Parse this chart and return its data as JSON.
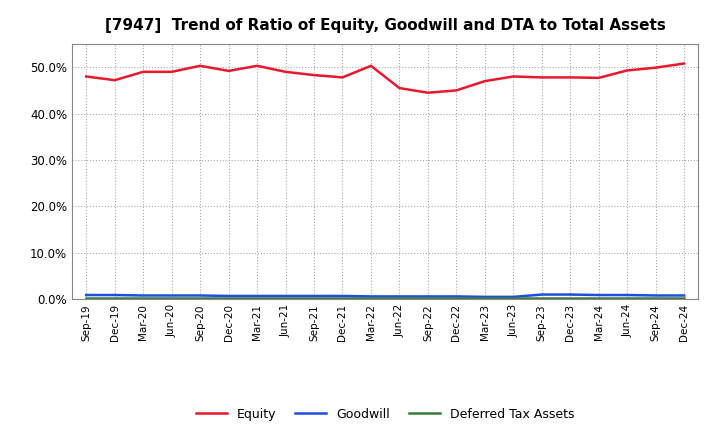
{
  "title": "[7947]  Trend of Ratio of Equity, Goodwill and DTA to Total Assets",
  "x_labels": [
    "Sep-19",
    "Dec-19",
    "Mar-20",
    "Jun-20",
    "Sep-20",
    "Dec-20",
    "Mar-21",
    "Jun-21",
    "Sep-21",
    "Dec-21",
    "Mar-22",
    "Jun-22",
    "Sep-22",
    "Dec-22",
    "Mar-23",
    "Jun-23",
    "Sep-23",
    "Dec-23",
    "Mar-24",
    "Jun-24",
    "Sep-24",
    "Dec-24"
  ],
  "equity": [
    0.48,
    0.472,
    0.49,
    0.49,
    0.503,
    0.492,
    0.503,
    0.49,
    0.483,
    0.478,
    0.503,
    0.455,
    0.445,
    0.45,
    0.47,
    0.48,
    0.478,
    0.478,
    0.477,
    0.493,
    0.499,
    0.508
  ],
  "goodwill": [
    0.009,
    0.009,
    0.008,
    0.008,
    0.008,
    0.007,
    0.007,
    0.007,
    0.007,
    0.007,
    0.006,
    0.006,
    0.006,
    0.006,
    0.005,
    0.005,
    0.01,
    0.01,
    0.009,
    0.009,
    0.008,
    0.008
  ],
  "dta": [
    0.002,
    0.002,
    0.002,
    0.002,
    0.002,
    0.002,
    0.002,
    0.002,
    0.002,
    0.002,
    0.002,
    0.002,
    0.002,
    0.002,
    0.002,
    0.002,
    0.002,
    0.002,
    0.002,
    0.002,
    0.002,
    0.002
  ],
  "equity_color": "#e8192c",
  "goodwill_color": "#1f4de4",
  "dta_color": "#3a7d3a",
  "bg_color": "#ffffff",
  "plot_bg_color": "#ffffff",
  "grid_color": "#aaaaaa",
  "ylim": [
    0.0,
    0.55
  ],
  "yticks": [
    0.0,
    0.1,
    0.2,
    0.3,
    0.4,
    0.5
  ],
  "legend_labels": [
    "Equity",
    "Goodwill",
    "Deferred Tax Assets"
  ]
}
